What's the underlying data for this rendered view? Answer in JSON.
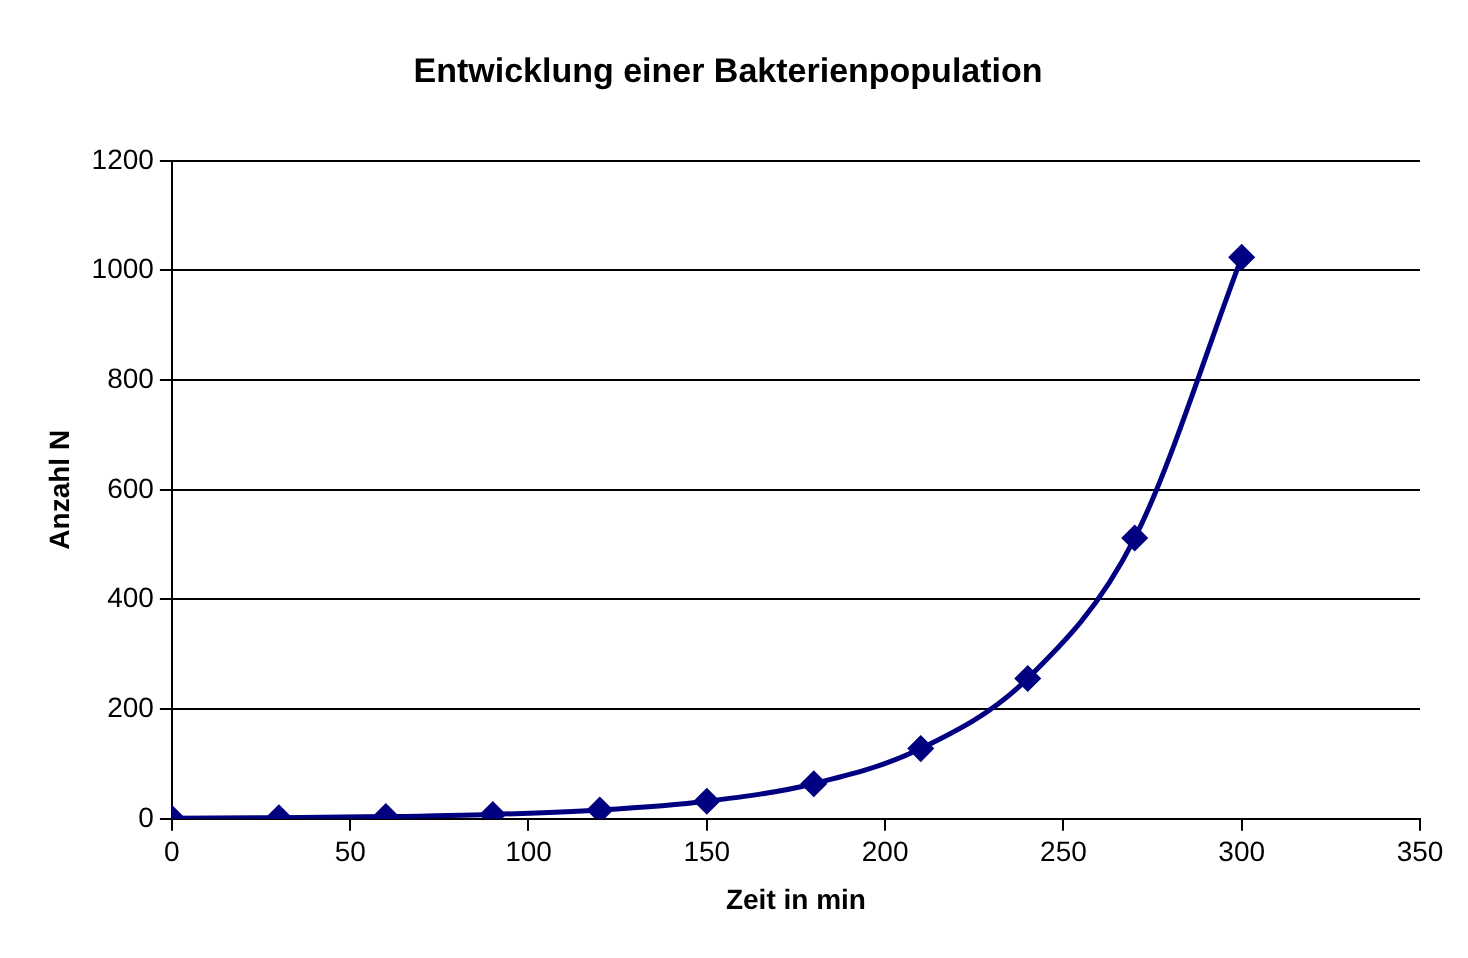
{
  "chart_data": {
    "type": "line",
    "title": "Entwicklung einer Bakterienpopulation",
    "xlabel": "Zeit in min",
    "ylabel": "Anzahl N",
    "x": [
      0,
      30,
      60,
      90,
      120,
      150,
      180,
      210,
      240,
      270,
      300
    ],
    "series": [
      {
        "color": "#000080",
        "values": [
          1,
          2,
          4,
          8,
          16,
          32,
          64,
          128,
          256,
          512,
          1024
        ]
      }
    ],
    "xlim": [
      0,
      350
    ],
    "xticks": [
      0,
      50,
      100,
      150,
      200,
      250,
      300,
      350
    ],
    "ylim": [
      0,
      1200
    ],
    "yticks": [
      0,
      200,
      400,
      600,
      800,
      1000,
      1200
    ],
    "grid": "y",
    "legend": false,
    "marker": "diamond",
    "line_style": "solid"
  }
}
